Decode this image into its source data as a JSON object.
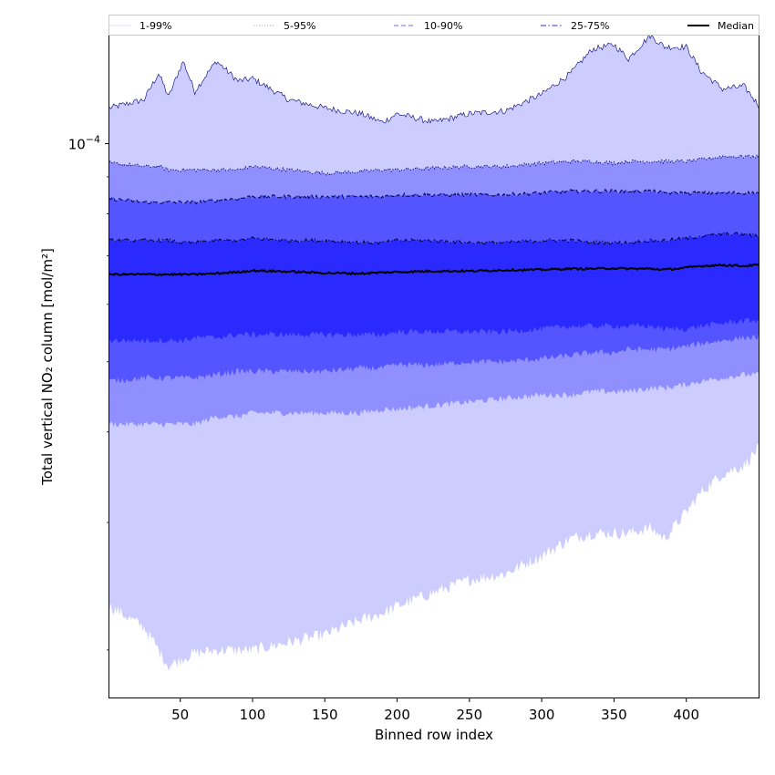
{
  "chart_data": {
    "type": "area",
    "title": "",
    "xlabel": "Binned row index",
    "ylabel": "Total vertical NO₂ column [mol/m²]",
    "yscale": "log",
    "xlim": [
      1,
      450
    ],
    "ylim": [
      1.72e-05,
      0.000141
    ],
    "xticks": [
      50,
      100,
      150,
      200,
      250,
      300,
      350,
      400
    ],
    "yticks": [
      {
        "value": 0.0001,
        "base": "10",
        "exponent": "−4"
      }
    ],
    "grid": false,
    "legend_position": "top",
    "legend": [
      {
        "name": "1-99%",
        "color": "#e3e3ff",
        "dash": "solid"
      },
      {
        "name": "5-95%",
        "color": "#b8b8f0",
        "dash": "dotted"
      },
      {
        "name": "10-90%",
        "color": "#8b8bf5",
        "dash": "dashed"
      },
      {
        "name": "25-75%",
        "color": "#5454f0",
        "dash": "dashdot"
      },
      {
        "name": "Median",
        "color": "#000000",
        "dash": "solid"
      }
    ],
    "x": [
      1,
      25,
      35,
      42,
      52,
      60,
      75,
      90,
      100,
      125,
      150,
      175,
      190,
      200,
      225,
      250,
      275,
      300,
      320,
      335,
      350,
      360,
      375,
      385,
      400,
      410,
      425,
      440,
      450
    ],
    "bands": [
      {
        "name": "1-99%",
        "color": "#ccccff",
        "lower": [
          2.3e-05,
          2.15e-05,
          2e-05,
          1.9e-05,
          1.95e-05,
          1.98e-05,
          2e-05,
          2e-05,
          2e-05,
          2.05e-05,
          2.1e-05,
          2.2e-05,
          2.25e-05,
          2.3e-05,
          2.4e-05,
          2.5e-05,
          2.55e-05,
          2.7e-05,
          2.85e-05,
          2.9e-05,
          2.9e-05,
          2.9e-05,
          2.95e-05,
          2.85e-05,
          3.1e-05,
          3.3e-05,
          3.5e-05,
          3.6e-05,
          3.8e-05
        ],
        "upper": [
          0.000112,
          0.000115,
          0.000125,
          0.000116,
          0.00013,
          0.000118,
          0.00013,
          0.000122,
          0.000123,
          0.000115,
          0.000112,
          0.00011,
          0.000107,
          0.00011,
          0.000107,
          0.00011,
          0.000111,
          0.000117,
          0.000125,
          0.000135,
          0.000137,
          0.000131,
          0.000141,
          0.000136,
          0.000136,
          0.000126,
          0.000119,
          0.00012,
          0.000113
        ]
      },
      {
        "name": "5-95%",
        "color": "#8f8fff",
        "lower": [
          4.1e-05,
          4.1e-05,
          4.1e-05,
          4.1e-05,
          4.1e-05,
          4.1e-05,
          4.2e-05,
          4.2e-05,
          4.25e-05,
          4.25e-05,
          4.25e-05,
          4.25e-05,
          4.3e-05,
          4.3e-05,
          4.35e-05,
          4.4e-05,
          4.45e-05,
          4.5e-05,
          4.5e-05,
          4.55e-05,
          4.55e-05,
          4.55e-05,
          4.6e-05,
          4.6e-05,
          4.65e-05,
          4.7e-05,
          4.75e-05,
          4.8e-05,
          4.8e-05
        ],
        "upper": [
          9.4e-05,
          9.3e-05,
          9.3e-05,
          9.2e-05,
          9.2e-05,
          9.2e-05,
          9.2e-05,
          9.2e-05,
          9.3e-05,
          9.2e-05,
          9.1e-05,
          9.15e-05,
          9.2e-05,
          9.2e-05,
          9.25e-05,
          9.3e-05,
          9.3e-05,
          9.4e-05,
          9.45e-05,
          9.45e-05,
          9.4e-05,
          9.45e-05,
          9.45e-05,
          9.45e-05,
          9.45e-05,
          9.5e-05,
          9.6e-05,
          9.6e-05,
          9.6e-05
        ]
      },
      {
        "name": "10-90%",
        "color": "#5555ff",
        "lower": [
          4.7e-05,
          4.75e-05,
          4.75e-05,
          4.75e-05,
          4.75e-05,
          4.75e-05,
          4.8e-05,
          4.85e-05,
          4.85e-05,
          4.85e-05,
          4.85e-05,
          4.9e-05,
          4.9e-05,
          4.95e-05,
          4.95e-05,
          5e-05,
          5e-05,
          5.05e-05,
          5.1e-05,
          5.15e-05,
          5.15e-05,
          5.2e-05,
          5.2e-05,
          5.2e-05,
          5.25e-05,
          5.3e-05,
          5.35e-05,
          5.4e-05,
          5.4e-05
        ],
        "upper": [
          8.4e-05,
          8.3e-05,
          8.3e-05,
          8.3e-05,
          8.3e-05,
          8.3e-05,
          8.35e-05,
          8.4e-05,
          8.45e-05,
          8.45e-05,
          8.45e-05,
          8.45e-05,
          8.45e-05,
          8.5e-05,
          8.5e-05,
          8.5e-05,
          8.5e-05,
          8.55e-05,
          8.6e-05,
          8.6e-05,
          8.6e-05,
          8.6e-05,
          8.6e-05,
          8.55e-05,
          8.55e-05,
          8.55e-05,
          8.55e-05,
          8.55e-05,
          8.55e-05
        ]
      },
      {
        "name": "25-75%",
        "color": "#2a2aff",
        "lower": [
          5.35e-05,
          5.35e-05,
          5.35e-05,
          5.35e-05,
          5.35e-05,
          5.4e-05,
          5.4e-05,
          5.45e-05,
          5.45e-05,
          5.45e-05,
          5.45e-05,
          5.45e-05,
          5.45e-05,
          5.5e-05,
          5.5e-05,
          5.5e-05,
          5.5e-05,
          5.55e-05,
          5.6e-05,
          5.6e-05,
          5.6e-05,
          5.6e-05,
          5.6e-05,
          5.55e-05,
          5.55e-05,
          5.6e-05,
          5.65e-05,
          5.7e-05,
          5.7e-05
        ],
        "upper": [
          7.35e-05,
          7.35e-05,
          7.35e-05,
          7.35e-05,
          7.3e-05,
          7.3e-05,
          7.35e-05,
          7.35e-05,
          7.4e-05,
          7.35e-05,
          7.35e-05,
          7.3e-05,
          7.3e-05,
          7.35e-05,
          7.35e-05,
          7.3e-05,
          7.3e-05,
          7.35e-05,
          7.35e-05,
          7.3e-05,
          7.3e-05,
          7.3e-05,
          7.35e-05,
          7.35e-05,
          7.4e-05,
          7.45e-05,
          7.5e-05,
          7.5e-05,
          7.45e-05
        ]
      }
    ],
    "median": {
      "name": "Median",
      "color": "#000000",
      "values": [
        6.6e-05,
        6.6e-05,
        6.6e-05,
        6.6e-05,
        6.6e-05,
        6.6e-05,
        6.62e-05,
        6.65e-05,
        6.68e-05,
        6.66e-05,
        6.63e-05,
        6.62e-05,
        6.64e-05,
        6.65e-05,
        6.67e-05,
        6.67e-05,
        6.69e-05,
        6.7e-05,
        6.72e-05,
        6.72e-05,
        6.73e-05,
        6.72e-05,
        6.72e-05,
        6.7e-05,
        6.74e-05,
        6.78e-05,
        6.8e-05,
        6.78e-05,
        6.8e-05
      ]
    }
  }
}
